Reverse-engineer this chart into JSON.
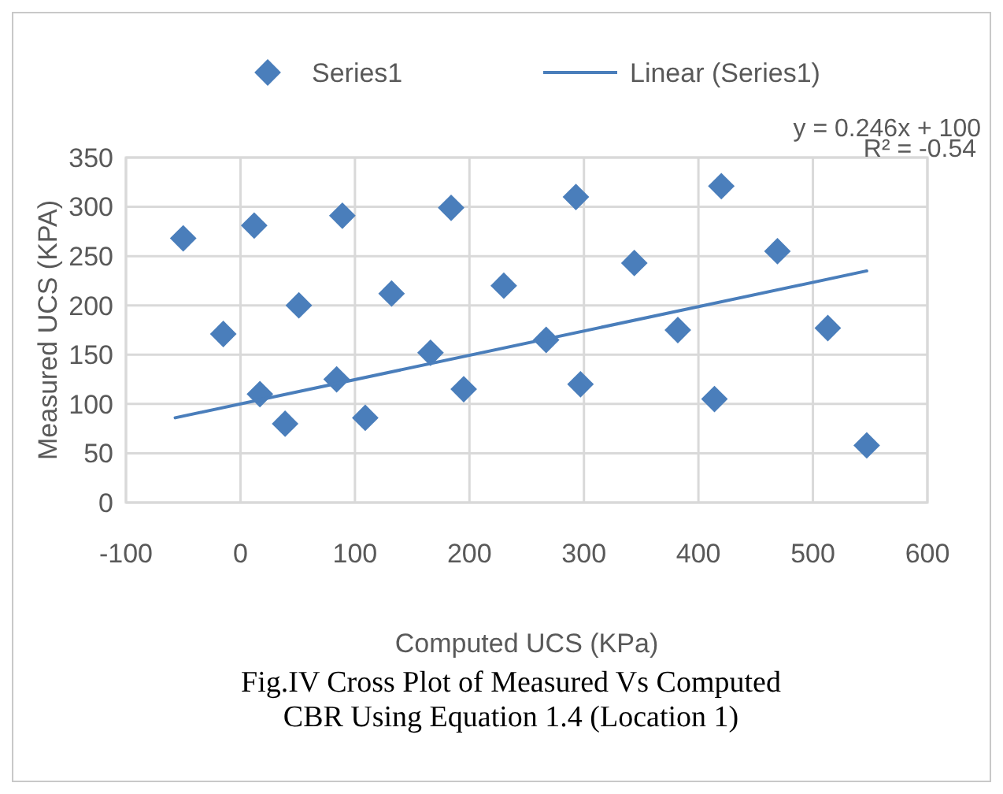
{
  "chart_data": {
    "type": "scatter",
    "xlabel": "Computed UCS (KPa)",
    "ylabel": "Measured UCS (KPA)",
    "xlim": [
      -100,
      600
    ],
    "xticks": [
      -100,
      0,
      100,
      200,
      300,
      400,
      500,
      600
    ],
    "ylim": [
      0,
      350
    ],
    "yticks": [
      0,
      50,
      100,
      150,
      200,
      250,
      300,
      350
    ],
    "grid": true,
    "legend": "top",
    "series": [
      {
        "name": "Series1",
        "color": "#4a7ebb",
        "marker": "diamond",
        "x": [
          -50,
          -15,
          12,
          17,
          39,
          51,
          84,
          89,
          109,
          132,
          166,
          184,
          195,
          230,
          267,
          293,
          297,
          344,
          382,
          414,
          420,
          469,
          513,
          547
        ],
        "values": [
          268,
          171,
          281,
          110,
          80,
          200,
          125,
          291,
          86,
          212,
          152,
          299,
          115,
          220,
          165,
          310,
          120,
          243,
          175,
          105,
          321,
          255,
          177,
          58
        ]
      },
      {
        "name": "Linear (Series1)",
        "color": "#4a7ebb",
        "type": "line",
        "x": [
          -57,
          547
        ],
        "values": [
          86,
          235
        ]
      }
    ],
    "annotations": [
      "y = 0.246x + 100",
      "R² = -0.54",
      "Fig.IV  Cross Plot of Measured Vs Computed",
      "CBR Using Equation 1.4 (Location   1)"
    ]
  }
}
